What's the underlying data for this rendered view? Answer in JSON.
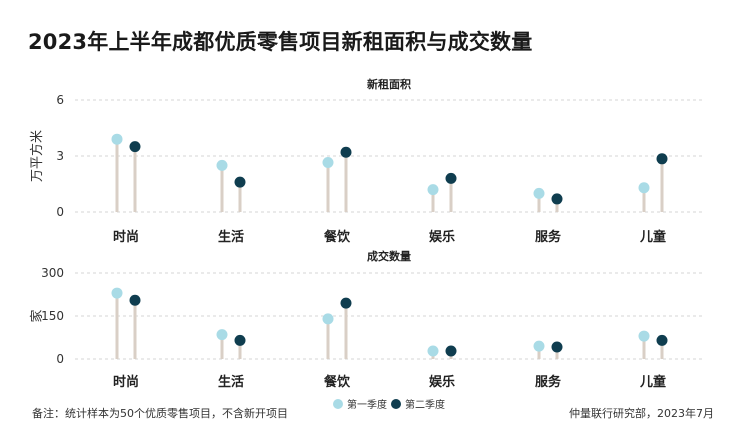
{
  "title": "2023年上半年成都优质零售项目新租面积与成交数量",
  "footnote": "备注：统计样本为50个优质零售项目，不含新开项目",
  "source": "仲量联行研究部，2023年7月",
  "colors": {
    "series1": "#a9dbe6",
    "series2": "#0f3d4f",
    "stem": "#d9cfc6",
    "grid": "#d6d6d6"
  },
  "chart_data": [
    {
      "type": "lollipop",
      "title": "新租面积",
      "ylabel": "万平方米",
      "ylim": [
        0,
        6
      ],
      "yticks": [
        0,
        3,
        6
      ],
      "categories": [
        "时尚",
        "生活",
        "餐饮",
        "娱乐",
        "服务",
        "儿童"
      ],
      "series": [
        {
          "name": "第一季度",
          "values": [
            3.9,
            2.5,
            2.65,
            1.2,
            1.0,
            1.3
          ]
        },
        {
          "name": "第二季度",
          "values": [
            3.5,
            1.6,
            3.2,
            1.8,
            0.7,
            2.85
          ]
        }
      ],
      "grid": true
    },
    {
      "type": "lollipop",
      "title": "成交数量",
      "ylabel": "家",
      "ylim": [
        0,
        300
      ],
      "yticks": [
        0,
        150,
        300
      ],
      "categories": [
        "时尚",
        "生活",
        "餐饮",
        "娱乐",
        "服务",
        "儿童"
      ],
      "series": [
        {
          "name": "第一季度",
          "values": [
            230,
            85,
            140,
            28,
            45,
            80
          ]
        },
        {
          "name": "第二季度",
          "values": [
            205,
            65,
            195,
            28,
            42,
            65
          ]
        }
      ],
      "grid": true
    }
  ],
  "legend": {
    "placement": "bottom-center",
    "items": [
      "第一季度",
      "第二季度"
    ]
  }
}
